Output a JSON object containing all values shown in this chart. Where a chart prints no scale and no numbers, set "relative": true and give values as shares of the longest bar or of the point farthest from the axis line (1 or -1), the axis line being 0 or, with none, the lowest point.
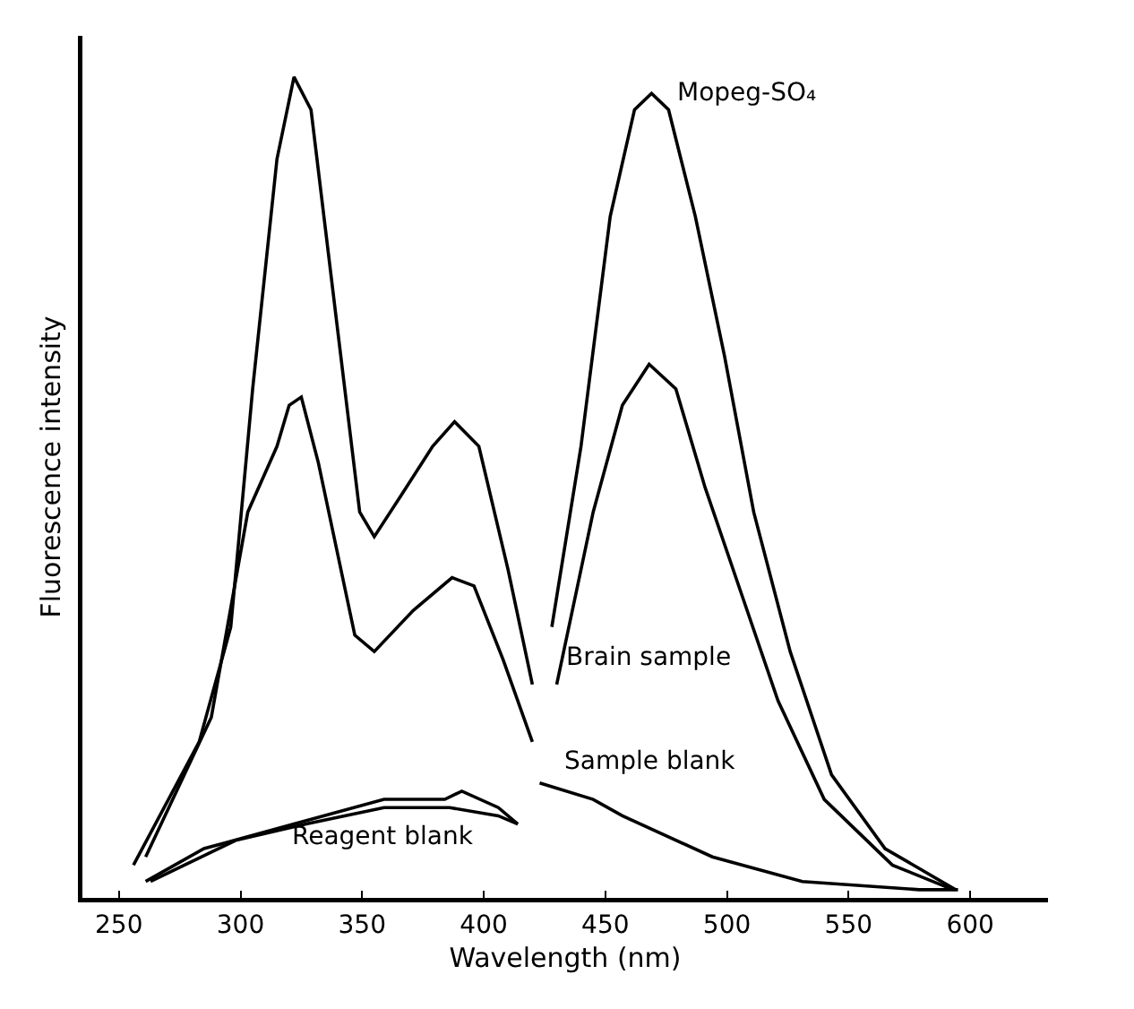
{
  "chart_data": {
    "type": "line",
    "xlabel": "Wavelength (nm)",
    "ylabel": "Fluorescence intensity",
    "relative": true,
    "xlim": [
      235,
      632
    ],
    "xticks": [
      250,
      300,
      350,
      400,
      450,
      500,
      550,
      600
    ],
    "grid": false,
    "legend": false,
    "marker": "none",
    "line_style": "solid",
    "series": [
      {
        "name": "Mopeg-SO₄",
        "color": "#000000",
        "x": [
          256,
          283,
          296,
          305,
          315,
          322,
          329,
          340,
          349,
          355,
          366,
          379,
          388,
          398,
          410,
          420,
          424,
          428,
          440,
          452,
          462,
          469,
          476,
          487,
          499,
          511,
          526,
          543,
          565,
          594
        ],
        "values": [
          0.04,
          0.19,
          0.33,
          0.62,
          0.9,
          1.0,
          0.96,
          0.69,
          0.47,
          0.44,
          0.49,
          0.55,
          0.58,
          0.55,
          0.4,
          0.26,
          null,
          0.33,
          0.55,
          0.83,
          0.96,
          0.98,
          0.96,
          0.83,
          0.66,
          0.47,
          0.3,
          0.15,
          0.06,
          0.01
        ]
      },
      {
        "name": "Brain sample",
        "color": "#000000",
        "x": [
          261,
          288,
          303,
          315,
          320,
          325,
          332,
          347,
          355,
          371,
          387,
          396,
          408,
          420,
          425,
          430,
          445,
          457,
          468,
          479,
          491,
          506,
          521,
          540,
          568,
          593
        ],
        "values": [
          0.05,
          0.22,
          0.47,
          0.55,
          0.6,
          0.61,
          0.53,
          0.32,
          0.3,
          0.35,
          0.39,
          0.38,
          0.29,
          0.19,
          null,
          0.26,
          0.47,
          0.6,
          0.65,
          0.62,
          0.5,
          0.37,
          0.24,
          0.12,
          0.04,
          0.01
        ]
      },
      {
        "name": "Sample blank",
        "color": "#000000",
        "x": [
          261,
          285,
          322,
          359,
          384,
          391,
          406,
          414,
          418,
          423,
          445,
          457,
          494,
          531,
          579,
          595
        ],
        "values": [
          0.02,
          0.06,
          0.09,
          0.12,
          0.12,
          0.13,
          0.11,
          0.09,
          null,
          0.14,
          0.12,
          0.1,
          0.05,
          0.02,
          0.01,
          0.01
        ]
      },
      {
        "name": "Reagent blank",
        "color": "#000000",
        "x": [
          263,
          298,
          327,
          359,
          386,
          406,
          414
        ],
        "values": [
          0.02,
          0.07,
          0.09,
          0.11,
          0.11,
          0.1,
          0.09
        ]
      }
    ]
  }
}
